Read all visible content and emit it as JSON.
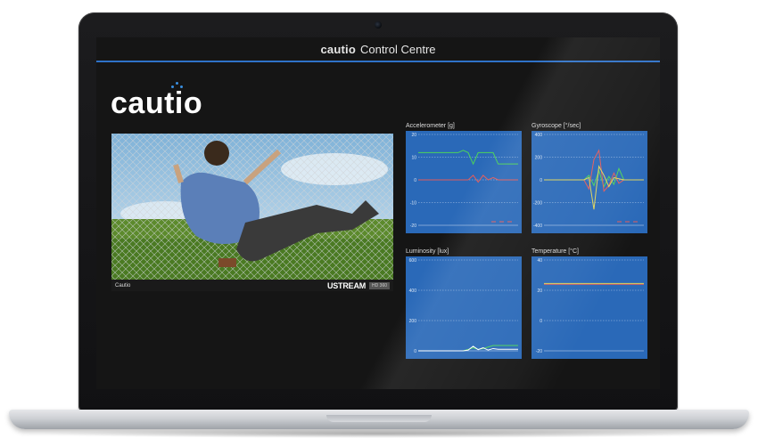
{
  "app": {
    "logo_small": "cautio",
    "title": "Control Centre",
    "brand_logo": "cautio"
  },
  "video": {
    "source_label": "Cautio",
    "provider": "USTREAM",
    "badge": "HD 360"
  },
  "colors": {
    "accent": "#2f72c8",
    "chart_bg": "#2a69b8",
    "series_green": "#4cd35a",
    "series_red": "#e35b5b",
    "series_yellow": "#e0d45a",
    "series_white": "#ffffff"
  },
  "charts": [
    {
      "id": "accelerometer",
      "label": "Accelerometer [g]",
      "type": "line",
      "ylim": [
        -20,
        20
      ],
      "yticks": [
        "20",
        "10",
        "0",
        "-10",
        "-20"
      ],
      "series": [
        {
          "color": "#4cd35a",
          "x": [
            0,
            10,
            20,
            30,
            40,
            45,
            50,
            55,
            60,
            65,
            70,
            75,
            80,
            85,
            100
          ],
          "y": [
            12,
            12,
            12,
            12,
            12,
            13,
            12,
            7,
            12,
            12,
            12,
            12,
            7,
            7,
            7
          ]
        },
        {
          "color": "#e35b5b",
          "x": [
            0,
            10,
            20,
            30,
            40,
            45,
            50,
            55,
            60,
            65,
            70,
            75,
            80,
            85,
            100
          ],
          "y": [
            0,
            0,
            0,
            0,
            0,
            0,
            0,
            2,
            -1,
            2,
            0,
            1,
            0,
            0,
            0
          ]
        }
      ],
      "legend_marks": [
        "a",
        "b",
        "c"
      ]
    },
    {
      "id": "gyroscope",
      "label": "Gyroscope [°/sec]",
      "type": "line",
      "ylim": [
        -400,
        400
      ],
      "yticks": [
        "400",
        "200",
        "0",
        "-200",
        "-400"
      ],
      "series": [
        {
          "color": "#4cd35a",
          "x": [
            0,
            30,
            40,
            45,
            50,
            55,
            60,
            65,
            70,
            75,
            80,
            100
          ],
          "y": [
            0,
            0,
            0,
            40,
            -50,
            80,
            -60,
            30,
            -40,
            100,
            0,
            0
          ]
        },
        {
          "color": "#e35b5b",
          "x": [
            0,
            30,
            40,
            45,
            50,
            55,
            60,
            65,
            70,
            75,
            80,
            100
          ],
          "y": [
            0,
            0,
            0,
            -80,
            180,
            260,
            -100,
            -50,
            60,
            -30,
            0,
            0
          ]
        },
        {
          "color": "#e0d45a",
          "x": [
            0,
            30,
            40,
            45,
            50,
            55,
            60,
            65,
            70,
            75,
            80,
            100
          ],
          "y": [
            0,
            0,
            0,
            20,
            -260,
            120,
            40,
            -60,
            20,
            10,
            0,
            0
          ]
        }
      ],
      "legend_marks": [
        "a",
        "b",
        "c"
      ]
    },
    {
      "id": "luminosity",
      "label": "Luminosity [lux]",
      "type": "line",
      "ylim": [
        0,
        600
      ],
      "yticks": [
        "600",
        "400",
        "200",
        "0"
      ],
      "series": [
        {
          "color": "#4cd35a",
          "x": [
            0,
            40,
            45,
            50,
            55,
            60,
            65,
            70,
            75,
            80,
            100
          ],
          "y": [
            0,
            0,
            0,
            10,
            20,
            10,
            15,
            25,
            35,
            35,
            35
          ]
        },
        {
          "color": "#ffffff",
          "x": [
            0,
            40,
            45,
            50,
            55,
            60,
            65,
            70,
            75,
            80,
            100
          ],
          "y": [
            0,
            0,
            0,
            5,
            30,
            8,
            20,
            5,
            15,
            10,
            10
          ]
        }
      ],
      "legend_marks": []
    },
    {
      "id": "temperature",
      "label": "Temperature [°C]",
      "type": "line",
      "ylim": [
        -20,
        40
      ],
      "yticks": [
        "40",
        "20",
        "0",
        "-20"
      ],
      "series": [
        {
          "color": "#e35b5b",
          "x": [
            0,
            100
          ],
          "y": [
            24,
            24
          ]
        },
        {
          "color": "#e0d45a",
          "x": [
            0,
            100
          ],
          "y": [
            24.5,
            24.5
          ]
        }
      ],
      "legend_marks": []
    }
  ]
}
